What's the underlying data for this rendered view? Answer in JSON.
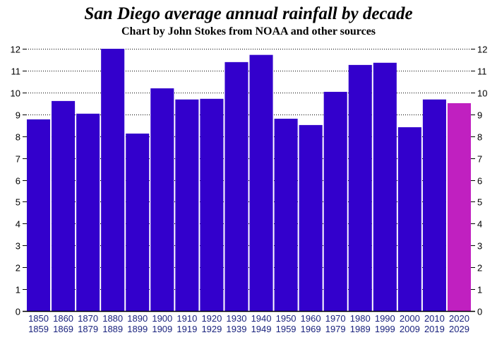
{
  "chart_data": {
    "type": "bar",
    "title": "San Diego average annual rainfall by decade",
    "subtitle": "Chart by John Stokes from NOAA and other sources",
    "xlabel": "",
    "ylabel": "",
    "ylim": [
      0,
      12
    ],
    "yticks": [
      0,
      1,
      2,
      3,
      4,
      5,
      6,
      7,
      8,
      9,
      10,
      11,
      12
    ],
    "grid": true,
    "categories": [
      [
        "1850",
        "1859"
      ],
      [
        "1860",
        "1869"
      ],
      [
        "1870",
        "1879"
      ],
      [
        "1880",
        "1889"
      ],
      [
        "1890",
        "1899"
      ],
      [
        "1900",
        "1909"
      ],
      [
        "1910",
        "1919"
      ],
      [
        "1920",
        "1929"
      ],
      [
        "1930",
        "1939"
      ],
      [
        "1940",
        "1949"
      ],
      [
        "1950",
        "1959"
      ],
      [
        "1960",
        "1969"
      ],
      [
        "1970",
        "1979"
      ],
      [
        "1980",
        "1989"
      ],
      [
        "1990",
        "1999"
      ],
      [
        "2000",
        "2009"
      ],
      [
        "2010",
        "2019"
      ],
      [
        "2020",
        "2029"
      ]
    ],
    "values": [
      8.77,
      9.61,
      9.03,
      12.0,
      8.12,
      10.19,
      9.68,
      9.71,
      11.39,
      11.72,
      8.8,
      8.51,
      10.03,
      11.26,
      11.36,
      8.41,
      9.68,
      9.51
    ],
    "colors": {
      "bar": "#3300CC",
      "highlight": "#C020C0",
      "highlight_index": 17
    }
  }
}
